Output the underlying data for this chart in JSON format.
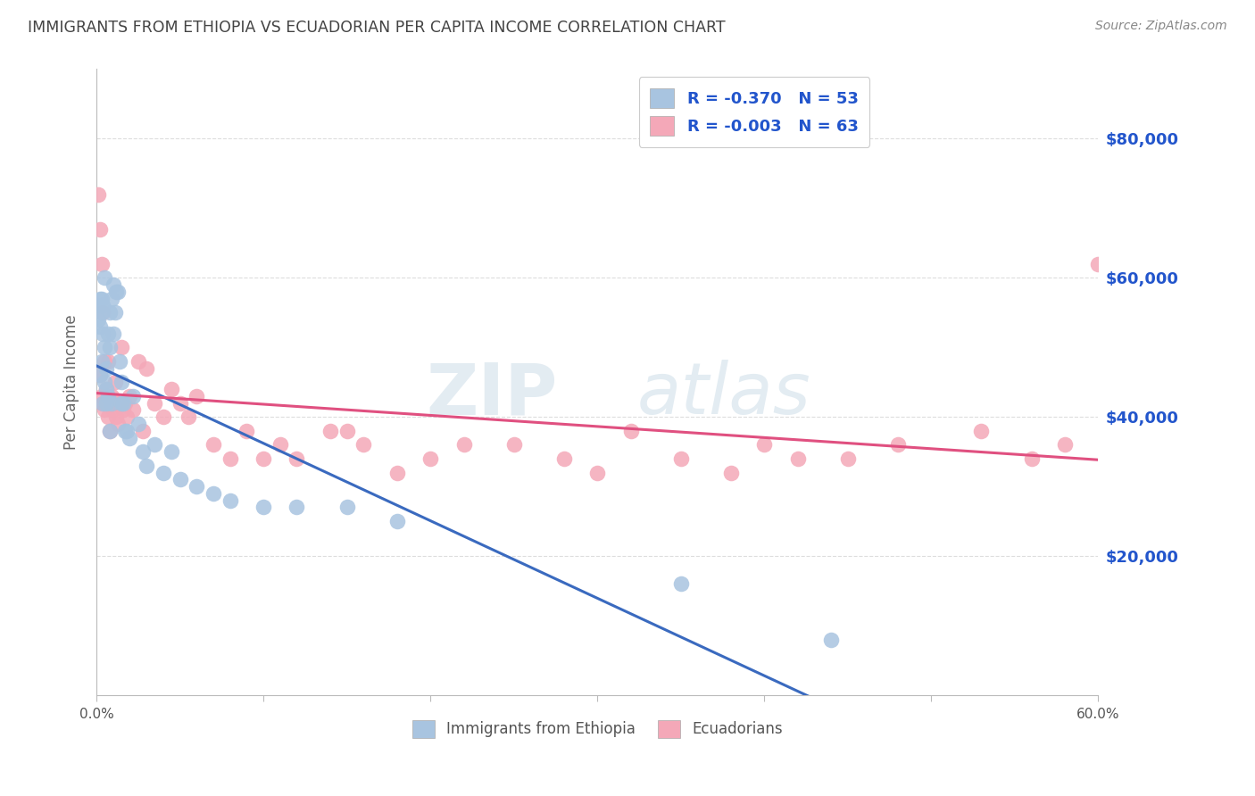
{
  "title": "IMMIGRANTS FROM ETHIOPIA VS ECUADORIAN PER CAPITA INCOME CORRELATION CHART",
  "source": "Source: ZipAtlas.com",
  "ylabel": "Per Capita Income",
  "xlim": [
    0.0,
    0.6
  ],
  "ylim": [
    0,
    90000
  ],
  "xtick_labels": [
    "0.0%",
    "",
    "",
    "",
    "",
    "",
    "60.0%"
  ],
  "xtick_values": [
    0.0,
    0.1,
    0.2,
    0.3,
    0.4,
    0.5,
    0.6
  ],
  "ytick_labels": [
    "$20,000",
    "$40,000",
    "$60,000",
    "$80,000"
  ],
  "ytick_values": [
    20000,
    40000,
    60000,
    80000
  ],
  "color_blue": "#a8c4e0",
  "color_pink": "#f4a8b8",
  "color_blue_line": "#3a6abf",
  "color_pink_line": "#e05080",
  "color_legend_text": "#2255cc",
  "watermark_color": "#ccdde8",
  "background_color": "#ffffff",
  "grid_color": "#dddddd",
  "title_color": "#444444",
  "right_label_color": "#2255cc",
  "ethiopia_x": [
    0.001,
    0.001,
    0.002,
    0.002,
    0.002,
    0.003,
    0.003,
    0.003,
    0.004,
    0.004,
    0.004,
    0.005,
    0.005,
    0.005,
    0.006,
    0.006,
    0.006,
    0.007,
    0.007,
    0.008,
    0.008,
    0.008,
    0.009,
    0.009,
    0.01,
    0.01,
    0.011,
    0.012,
    0.013,
    0.014,
    0.015,
    0.015,
    0.016,
    0.017,
    0.018,
    0.02,
    0.022,
    0.025,
    0.028,
    0.03,
    0.035,
    0.04,
    0.045,
    0.05,
    0.06,
    0.07,
    0.08,
    0.1,
    0.12,
    0.15,
    0.18,
    0.35,
    0.44
  ],
  "ethiopia_y": [
    54000,
    56000,
    53000,
    57000,
    46000,
    55000,
    57000,
    48000,
    56000,
    42000,
    52000,
    45000,
    50000,
    60000,
    42000,
    47000,
    44000,
    52000,
    43000,
    50000,
    55000,
    38000,
    42000,
    57000,
    59000,
    52000,
    55000,
    58000,
    58000,
    48000,
    42000,
    45000,
    42000,
    38000,
    38000,
    37000,
    43000,
    39000,
    35000,
    33000,
    36000,
    32000,
    35000,
    31000,
    30000,
    29000,
    28000,
    27000,
    27000,
    27000,
    25000,
    16000,
    8000
  ],
  "ecuador_x": [
    0.001,
    0.002,
    0.002,
    0.003,
    0.003,
    0.004,
    0.004,
    0.005,
    0.005,
    0.006,
    0.006,
    0.007,
    0.007,
    0.008,
    0.008,
    0.009,
    0.01,
    0.01,
    0.011,
    0.012,
    0.013,
    0.014,
    0.015,
    0.016,
    0.017,
    0.018,
    0.02,
    0.022,
    0.025,
    0.028,
    0.03,
    0.035,
    0.04,
    0.045,
    0.05,
    0.055,
    0.06,
    0.07,
    0.08,
    0.09,
    0.1,
    0.11,
    0.12,
    0.14,
    0.15,
    0.16,
    0.18,
    0.2,
    0.22,
    0.25,
    0.28,
    0.3,
    0.32,
    0.35,
    0.38,
    0.4,
    0.42,
    0.45,
    0.48,
    0.53,
    0.56,
    0.58,
    0.6
  ],
  "ecuador_y": [
    72000,
    67000,
    46000,
    62000,
    43000,
    55000,
    42000,
    48000,
    41000,
    44000,
    42000,
    48000,
    40000,
    42000,
    38000,
    43000,
    42000,
    41000,
    45000,
    40000,
    39000,
    42000,
    50000,
    41000,
    42000,
    40000,
    43000,
    41000,
    48000,
    38000,
    47000,
    42000,
    40000,
    44000,
    42000,
    40000,
    43000,
    36000,
    34000,
    38000,
    34000,
    36000,
    34000,
    38000,
    38000,
    36000,
    32000,
    34000,
    36000,
    36000,
    34000,
    32000,
    38000,
    34000,
    32000,
    36000,
    34000,
    34000,
    36000,
    38000,
    34000,
    36000,
    62000
  ]
}
